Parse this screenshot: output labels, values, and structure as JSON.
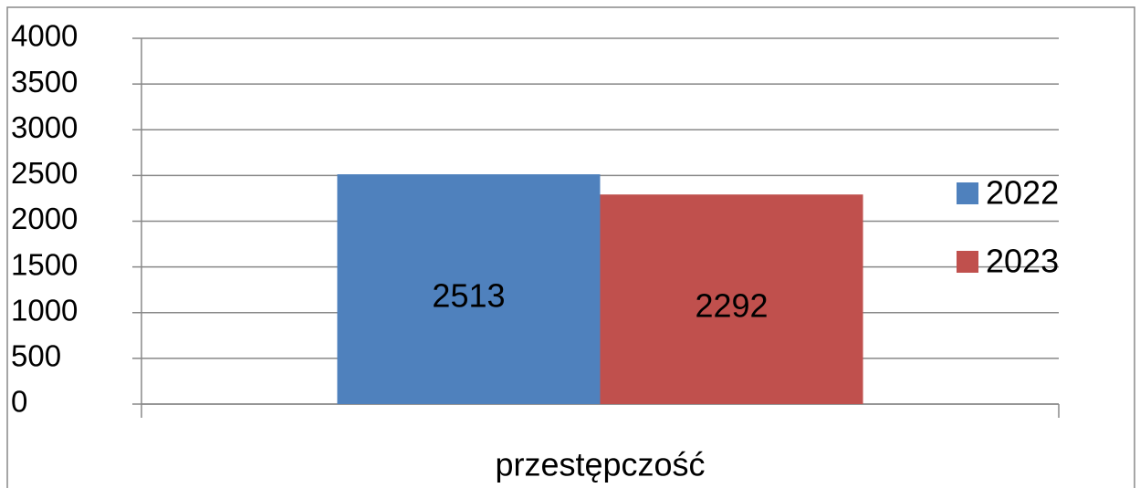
{
  "chart_data": {
    "type": "bar",
    "categories": [
      "przestępczość"
    ],
    "series": [
      {
        "name": "2022",
        "color": "#4f81bd",
        "values": [
          2513
        ]
      },
      {
        "name": "2023",
        "color": "#c0504d",
        "values": [
          2292
        ]
      }
    ],
    "ylim": [
      0,
      4000
    ],
    "yticks": [
      0,
      500,
      1000,
      1500,
      2000,
      2500,
      3000,
      3500,
      4000
    ],
    "grid": true,
    "legend": "right"
  }
}
